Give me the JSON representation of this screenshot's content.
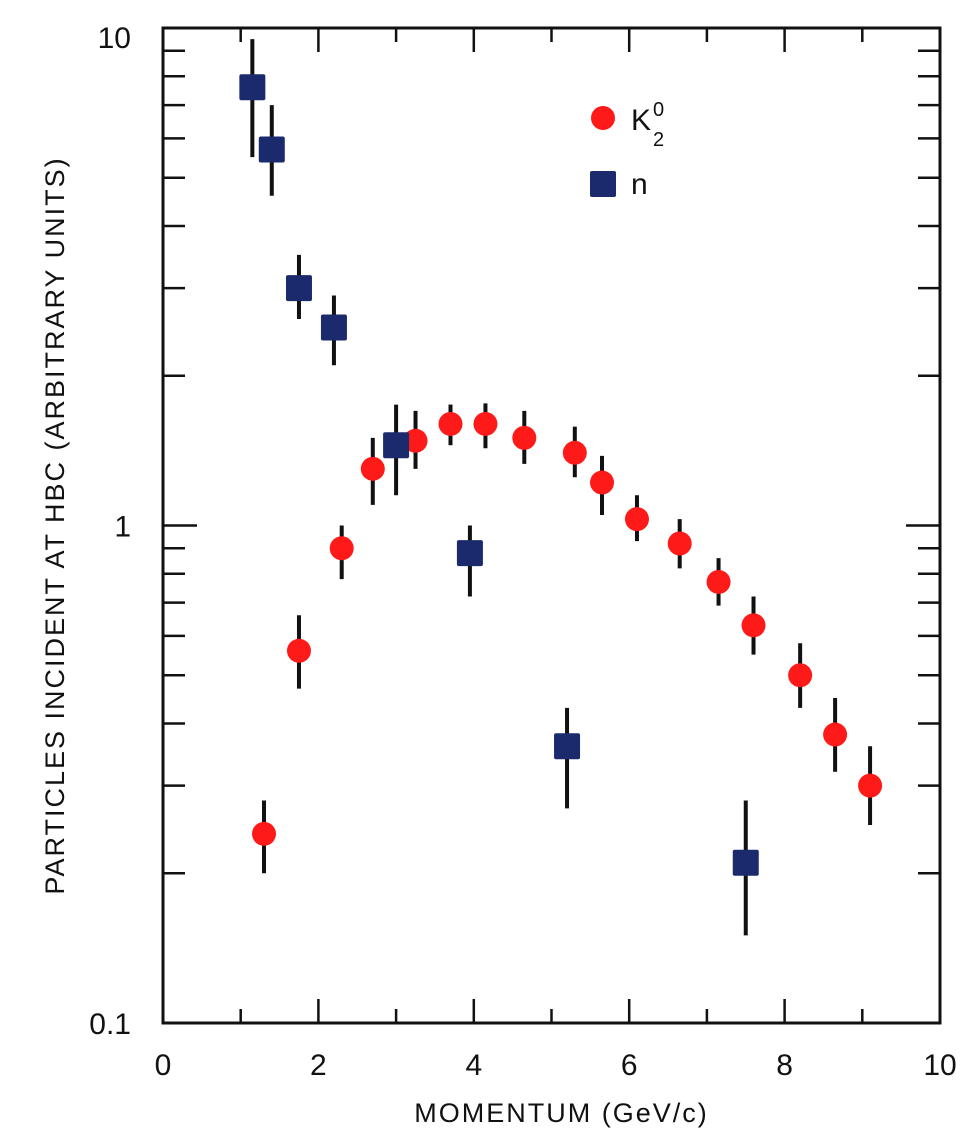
{
  "chart_data": {
    "type": "scatter",
    "title": "",
    "xlabel": "MOMENTUM (GeV/c)",
    "ylabel": "PARTICLES INCIDENT AT HBC (ARBITRARY UNITS)",
    "xlim": [
      0,
      10
    ],
    "ylim": [
      0.1,
      10
    ],
    "yscale": "log",
    "grid": false,
    "legend_position": "top-right",
    "x_ticks": [
      "0",
      "2",
      "4",
      "6",
      "8",
      "10"
    ],
    "y_ticks": [
      "0.1",
      "1",
      "10"
    ],
    "series": [
      {
        "name": "K",
        "name_superscript": "0",
        "name_subscript": "2",
        "marker": "circle",
        "color": "#ff1a1a",
        "points": [
          {
            "x": 1.3,
            "y": 0.24,
            "ylo": 0.2,
            "yhi": 0.28
          },
          {
            "x": 1.75,
            "y": 0.56,
            "ylo": 0.47,
            "yhi": 0.66
          },
          {
            "x": 2.3,
            "y": 0.9,
            "ylo": 0.78,
            "yhi": 1.0
          },
          {
            "x": 2.7,
            "y": 1.3,
            "ylo": 1.1,
            "yhi": 1.5
          },
          {
            "x": 3.25,
            "y": 1.48,
            "ylo": 1.3,
            "yhi": 1.7
          },
          {
            "x": 3.7,
            "y": 1.6,
            "ylo": 1.45,
            "yhi": 1.75
          },
          {
            "x": 4.15,
            "y": 1.6,
            "ylo": 1.43,
            "yhi": 1.76
          },
          {
            "x": 4.65,
            "y": 1.5,
            "ylo": 1.33,
            "yhi": 1.7
          },
          {
            "x": 5.3,
            "y": 1.4,
            "ylo": 1.25,
            "yhi": 1.58
          },
          {
            "x": 5.65,
            "y": 1.22,
            "ylo": 1.05,
            "yhi": 1.38
          },
          {
            "x": 6.1,
            "y": 1.03,
            "ylo": 0.93,
            "yhi": 1.15
          },
          {
            "x": 6.65,
            "y": 0.92,
            "ylo": 0.82,
            "yhi": 1.03
          },
          {
            "x": 7.15,
            "y": 0.77,
            "ylo": 0.69,
            "yhi": 0.86
          },
          {
            "x": 7.6,
            "y": 0.63,
            "ylo": 0.55,
            "yhi": 0.72
          },
          {
            "x": 8.2,
            "y": 0.5,
            "ylo": 0.43,
            "yhi": 0.58
          },
          {
            "x": 8.65,
            "y": 0.38,
            "ylo": 0.32,
            "yhi": 0.45
          },
          {
            "x": 9.1,
            "y": 0.3,
            "ylo": 0.25,
            "yhi": 0.36
          }
        ]
      },
      {
        "name": "n",
        "marker": "square",
        "color": "#1a2a6c",
        "points": [
          {
            "x": 1.15,
            "y": 7.6,
            "ylo": 5.5,
            "yhi": 9.5
          },
          {
            "x": 1.4,
            "y": 5.7,
            "ylo": 4.6,
            "yhi": 7.0
          },
          {
            "x": 1.75,
            "y": 3.0,
            "ylo": 2.6,
            "yhi": 3.5
          },
          {
            "x": 2.2,
            "y": 2.5,
            "ylo": 2.1,
            "yhi": 2.9
          },
          {
            "x": 3.0,
            "y": 1.45,
            "ylo": 1.15,
            "yhi": 1.75
          },
          {
            "x": 3.95,
            "y": 0.88,
            "ylo": 0.72,
            "yhi": 1.0
          },
          {
            "x": 5.2,
            "y": 0.36,
            "ylo": 0.27,
            "yhi": 0.43
          },
          {
            "x": 7.5,
            "y": 0.21,
            "ylo": 0.15,
            "yhi": 0.28
          }
        ]
      }
    ]
  }
}
